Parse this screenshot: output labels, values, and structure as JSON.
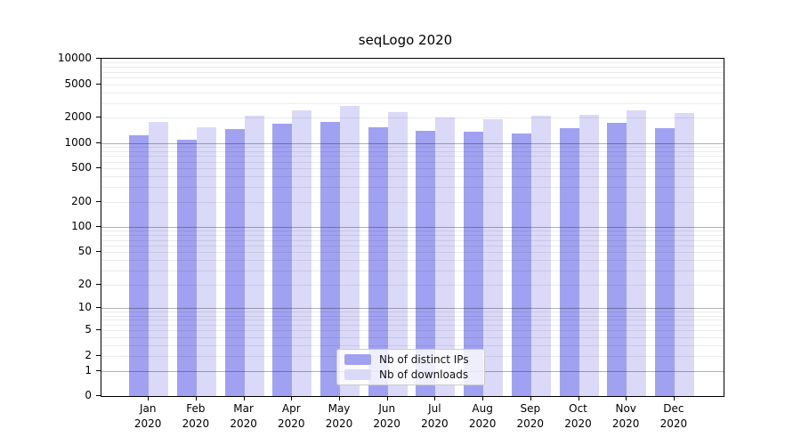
{
  "title": "seqLogo 2020",
  "colors": {
    "distinct_ips_bar": "#a1a1f1",
    "downloads_bar": "#dadaf8",
    "major_gridline": "#b0b0b0",
    "minor_gridline": "#ebebeb",
    "axis": "#000000",
    "legend_border": "#cccccc"
  },
  "chart_data": {
    "type": "bar",
    "title": "seqLogo 2020",
    "xlabel": "",
    "ylabel": "",
    "categories": [
      "Jan",
      "Feb",
      "Mar",
      "Apr",
      "May",
      "Jun",
      "Jul",
      "Aug",
      "Sep",
      "Oct",
      "Nov",
      "Dec"
    ],
    "category_year": "2020",
    "series": [
      {
        "name": "Nb of distinct IPs",
        "color": "#a1a1f1",
        "values": [
          1250,
          1100,
          1450,
          1700,
          1800,
          1550,
          1400,
          1350,
          1300,
          1500,
          1750,
          1500
        ]
      },
      {
        "name": "Nb of downloads",
        "color": "#dadaf8",
        "values": [
          1800,
          1550,
          2100,
          2450,
          2750,
          2350,
          2000,
          1900,
          2100,
          2150,
          2450,
          2300
        ]
      }
    ],
    "yscale": "log1p",
    "ylim": [
      0,
      10000
    ],
    "yticks": [
      0,
      1,
      2,
      5,
      10,
      20,
      50,
      100,
      200,
      500,
      1000,
      2000,
      5000,
      10000
    ],
    "grid": "horizontal; light minor log lines, darker lines at 1, 10, 100, 1000",
    "legend_position": "lower center"
  }
}
